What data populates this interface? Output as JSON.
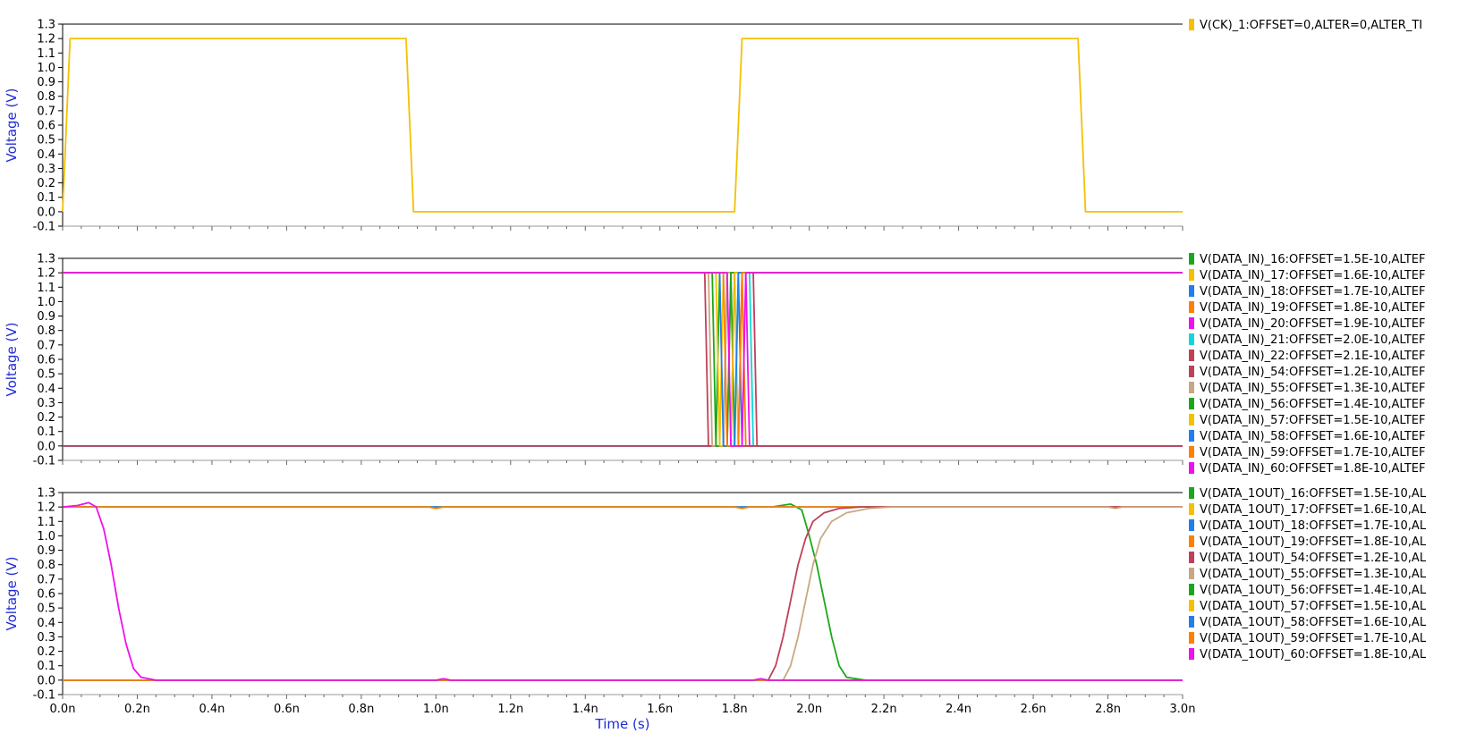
{
  "x_axis": {
    "label": "Time (s)",
    "ticks": [
      "0.0n",
      "0.2n",
      "0.4n",
      "0.6n",
      "0.8n",
      "1.0n",
      "1.2n",
      "1.4n",
      "1.6n",
      "1.8n",
      "2.0n",
      "2.2n",
      "2.4n",
      "2.6n",
      "2.8n",
      "3.0n"
    ]
  },
  "chart_data": [
    {
      "type": "line",
      "ylabel": "Voltage (V)",
      "xlim": [
        0,
        3.0
      ],
      "ylim": [
        -0.1,
        1.3
      ],
      "x_unit": "n",
      "y_ticks": [
        "1.3",
        "1.2",
        "1.1",
        "1.0",
        "0.9",
        "0.8",
        "0.7",
        "0.6",
        "0.5",
        "0.4",
        "0.3",
        "0.2",
        "0.1",
        "0.0",
        "-0.1"
      ],
      "series": [
        {
          "name": "V(CK)_1:OFFSET=0,ALTER=0,ALTER_TI",
          "color": "#f5c000",
          "x": [
            0,
            0.02,
            0.92,
            0.94,
            1.8,
            1.82,
            2.72,
            2.74,
            3.0
          ],
          "y": [
            0,
            1.2,
            1.2,
            0,
            0,
            1.2,
            1.2,
            0,
            0
          ]
        }
      ]
    },
    {
      "type": "line",
      "ylabel": "Voltage (V)",
      "xlim": [
        0,
        3.0
      ],
      "ylim": [
        -0.1,
        1.3
      ],
      "x_unit": "n",
      "y_ticks": [
        "1.3",
        "1.2",
        "1.1",
        "1.0",
        "0.9",
        "0.8",
        "0.7",
        "0.6",
        "0.5",
        "0.4",
        "0.3",
        "0.2",
        "0.1",
        "0.0",
        "-0.1"
      ],
      "series": [
        {
          "name": "V(DATA_IN)_16:OFFSET=1.5E-10,ALTEF",
          "color": "#1aa81a",
          "x": [
            0,
            1.75,
            1.76,
            1.79,
            1.8,
            3.0
          ],
          "y": [
            0,
            0,
            1.2,
            1.2,
            0,
            0
          ]
        },
        {
          "name": "V(DATA_IN)_17:OFFSET=1.6E-10,ALTEF",
          "color": "#f5c000",
          "x": [
            0,
            1.76,
            1.77,
            1.8,
            1.81,
            3.0
          ],
          "y": [
            0,
            0,
            1.2,
            1.2,
            0,
            0
          ]
        },
        {
          "name": "V(DATA_IN)_18:OFFSET=1.7E-10,ALTEF",
          "color": "#1f7ff0",
          "x": [
            0,
            1.77,
            1.78,
            1.81,
            1.82,
            3.0
          ],
          "y": [
            0,
            0,
            1.2,
            1.2,
            0,
            0
          ]
        },
        {
          "name": "V(DATA_IN)_19:OFFSET=1.8E-10,ALTEF",
          "color": "#ff7f00",
          "x": [
            0,
            1.78,
            1.79,
            1.82,
            1.83,
            3.0
          ],
          "y": [
            0,
            0,
            1.2,
            1.2,
            0,
            0
          ]
        },
        {
          "name": "V(DATA_IN)_20:OFFSET=1.9E-10,ALTEF",
          "color": "#ee10ee",
          "x": [
            0,
            1.79,
            1.8,
            1.83,
            1.84,
            3.0
          ],
          "y": [
            0,
            0,
            1.2,
            1.2,
            0,
            0
          ]
        },
        {
          "name": "V(DATA_IN)_21:OFFSET=2.0E-10,ALTEF",
          "color": "#10d8d8",
          "x": [
            0,
            1.8,
            1.81,
            1.84,
            1.85,
            3.0
          ],
          "y": [
            0,
            0,
            1.2,
            1.2,
            0,
            0
          ]
        },
        {
          "name": "V(DATA_IN)_22:OFFSET=2.1E-10,ALTEF",
          "color": "#c0405a",
          "x": [
            0,
            1.81,
            1.82,
            1.85,
            1.86,
            3.0
          ],
          "y": [
            0,
            0,
            1.2,
            1.2,
            0,
            0
          ]
        },
        {
          "name": "V(DATA_IN)_54:OFFSET=1.2E-10,ALTEF",
          "color": "#c0405a",
          "x": [
            0,
            1.72,
            1.73,
            3.0
          ],
          "y": [
            1.2,
            1.2,
            0,
            0
          ]
        },
        {
          "name": "V(DATA_IN)_55:OFFSET=1.3E-10,ALTEF",
          "color": "#c8a880",
          "x": [
            0,
            1.73,
            1.74,
            1.77,
            1.78,
            3.0
          ],
          "y": [
            1.2,
            1.2,
            0,
            0,
            1.2,
            1.2
          ]
        },
        {
          "name": "V(DATA_IN)_56:OFFSET=1.4E-10,ALTEF",
          "color": "#1aa81a",
          "x": [
            0,
            1.74,
            1.75,
            1.78,
            1.79,
            3.0
          ],
          "y": [
            1.2,
            1.2,
            0,
            0,
            1.2,
            1.2
          ]
        },
        {
          "name": "V(DATA_IN)_57:OFFSET=1.5E-10,ALTEF",
          "color": "#f5c000",
          "x": [
            0,
            1.75,
            1.76,
            1.79,
            1.8,
            3.0
          ],
          "y": [
            1.2,
            1.2,
            0,
            0,
            1.2,
            1.2
          ]
        },
        {
          "name": "V(DATA_IN)_58:OFFSET=1.6E-10,ALTEF",
          "color": "#1f7ff0",
          "x": [
            0,
            1.76,
            1.77,
            1.8,
            1.81,
            3.0
          ],
          "y": [
            1.2,
            1.2,
            0,
            0,
            1.2,
            1.2
          ]
        },
        {
          "name": "V(DATA_IN)_59:OFFSET=1.7E-10,ALTEF",
          "color": "#ff7f00",
          "x": [
            0,
            1.77,
            1.78,
            1.81,
            1.82,
            3.0
          ],
          "y": [
            1.2,
            1.2,
            0,
            0,
            1.2,
            1.2
          ]
        },
        {
          "name": "V(DATA_IN)_60:OFFSET=1.8E-10,ALTEF",
          "color": "#ee10ee",
          "x": [
            0,
            1.78,
            1.79,
            1.82,
            1.83,
            3.0
          ],
          "y": [
            1.2,
            1.2,
            0,
            0,
            1.2,
            1.2
          ]
        }
      ]
    },
    {
      "type": "line",
      "ylabel": "Voltage (V)",
      "xlim": [
        0,
        3.0
      ],
      "ylim": [
        -0.1,
        1.3
      ],
      "x_unit": "n",
      "y_ticks": [
        "1.3",
        "1.2",
        "1.1",
        "1.0",
        "0.9",
        "0.8",
        "0.7",
        "0.6",
        "0.5",
        "0.4",
        "0.3",
        "0.2",
        "0.1",
        "0.0",
        "-0.1"
      ],
      "series": [
        {
          "name": "V(DATA_1OUT)_16:OFFSET=1.5E-10,AL",
          "color": "#1aa81a",
          "x": [
            0,
            1.9,
            1.95,
            1.98,
            2.0,
            2.02,
            2.04,
            2.06,
            2.08,
            2.1,
            2.15,
            3.0
          ],
          "y": [
            1.2,
            1.2,
            1.22,
            1.18,
            1.0,
            0.8,
            0.55,
            0.3,
            0.1,
            0.02,
            0,
            0
          ]
        },
        {
          "name": "V(DATA_1OUT)_17:OFFSET=1.6E-10,AL",
          "color": "#f5c000",
          "x": [
            0,
            3.0
          ],
          "y": [
            1.2,
            1.2
          ]
        },
        {
          "name": "V(DATA_1OUT)_18:OFFSET=1.7E-10,AL",
          "color": "#1f7ff0",
          "x": [
            0,
            3.0
          ],
          "y": [
            1.2,
            1.2
          ]
        },
        {
          "name": "V(DATA_1OUT)_19:OFFSET=1.8E-10,AL",
          "color": "#ff7f00",
          "x": [
            0,
            0.98,
            1.0,
            1.02,
            1.8,
            1.82,
            1.84,
            3.0
          ],
          "y": [
            1.2,
            1.2,
            1.19,
            1.2,
            1.2,
            1.19,
            1.2,
            1.2
          ]
        },
        {
          "name": "V(DATA_1OUT)_54:OFFSET=1.2E-10,AL",
          "color": "#c0405a",
          "x": [
            0,
            1.89,
            1.91,
            1.93,
            1.95,
            1.97,
            1.99,
            2.01,
            2.04,
            2.08,
            2.14,
            2.2,
            3.0
          ],
          "y": [
            0,
            0,
            0.1,
            0.3,
            0.55,
            0.8,
            0.98,
            1.1,
            1.16,
            1.19,
            1.2,
            1.2,
            1.2
          ]
        },
        {
          "name": "V(DATA_1OUT)_55:OFFSET=1.3E-10,AL",
          "color": "#c8a880",
          "x": [
            0,
            1.93,
            1.95,
            1.97,
            1.99,
            2.01,
            2.03,
            2.06,
            2.1,
            2.16,
            2.22,
            2.8,
            2.82,
            2.84,
            3.0
          ],
          "y": [
            0,
            0,
            0.1,
            0.3,
            0.55,
            0.8,
            0.98,
            1.1,
            1.16,
            1.19,
            1.2,
            1.2,
            1.19,
            1.2,
            1.2
          ]
        },
        {
          "name": "V(DATA_1OUT)_56:OFFSET=1.4E-10,AL",
          "color": "#1aa81a",
          "x": [
            0,
            3.0
          ],
          "y": [
            0,
            0
          ]
        },
        {
          "name": "V(DATA_1OUT)_57:OFFSET=1.5E-10,AL",
          "color": "#f5c000",
          "x": [
            0,
            3.0
          ],
          "y": [
            0,
            0
          ]
        },
        {
          "name": "V(DATA_1OUT)_58:OFFSET=1.6E-10,AL",
          "color": "#1f7ff0",
          "x": [
            0,
            3.0
          ],
          "y": [
            0,
            0
          ]
        },
        {
          "name": "V(DATA_1OUT)_59:OFFSET=1.7E-10,AL",
          "color": "#ff7f00",
          "x": [
            0,
            3.0
          ],
          "y": [
            0,
            0
          ]
        },
        {
          "name": "V(DATA_1OUT)_60:OFFSET=1.8E-10,AL",
          "color": "#ee10ee",
          "x": [
            0,
            0.04,
            0.07,
            0.09,
            0.11,
            0.13,
            0.15,
            0.17,
            0.19,
            0.21,
            0.25,
            1.0,
            1.02,
            1.04,
            1.85,
            1.87,
            1.89,
            3.0
          ],
          "y": [
            1.2,
            1.21,
            1.23,
            1.2,
            1.05,
            0.8,
            0.5,
            0.25,
            0.08,
            0.02,
            0,
            0,
            0.01,
            0,
            0,
            0.01,
            0,
            0
          ]
        }
      ]
    }
  ]
}
